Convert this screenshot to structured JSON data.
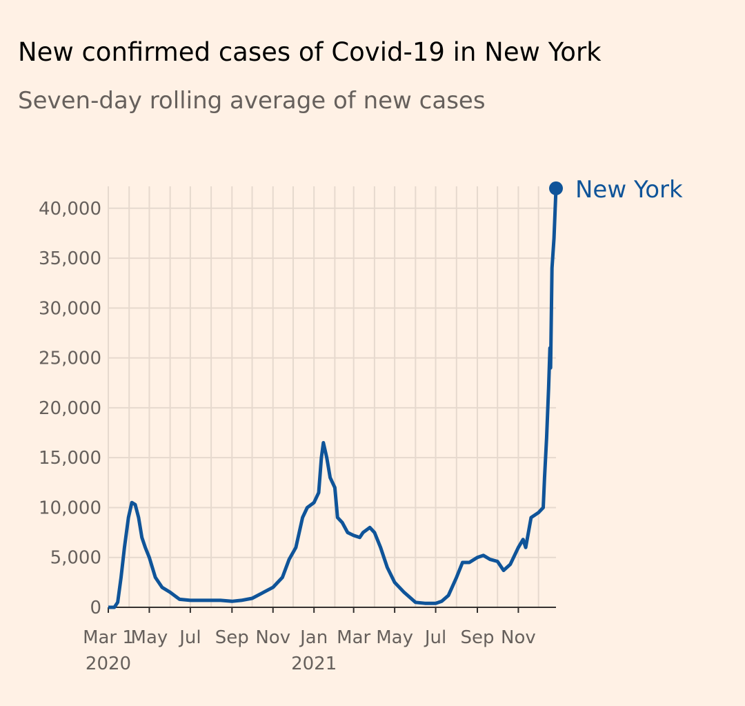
{
  "chart_data": {
    "type": "line",
    "title": "New confirmed cases of Covid-19 in New York",
    "subtitle": "Seven-day rolling average of new cases",
    "x": [
      "2020-03-01",
      "2020-03-10",
      "2020-03-15",
      "2020-03-20",
      "2020-03-25",
      "2020-03-31",
      "2020-04-05",
      "2020-04-10",
      "2020-04-15",
      "2020-04-20",
      "2020-04-25",
      "2020-05-01",
      "2020-05-10",
      "2020-05-20",
      "2020-06-01",
      "2020-06-15",
      "2020-07-01",
      "2020-07-15",
      "2020-08-01",
      "2020-08-15",
      "2020-09-01",
      "2020-09-15",
      "2020-10-01",
      "2020-10-15",
      "2020-11-01",
      "2020-11-15",
      "2020-11-25",
      "2020-12-05",
      "2020-12-15",
      "2020-12-22",
      "2021-01-01",
      "2021-01-08",
      "2021-01-12",
      "2021-01-15",
      "2021-01-20",
      "2021-01-25",
      "2021-02-01",
      "2021-02-05",
      "2021-02-12",
      "2021-02-20",
      "2021-03-01",
      "2021-03-10",
      "2021-03-15",
      "2021-03-25",
      "2021-04-01",
      "2021-04-10",
      "2021-04-20",
      "2021-05-01",
      "2021-05-15",
      "2021-06-01",
      "2021-06-15",
      "2021-07-01",
      "2021-07-10",
      "2021-07-20",
      "2021-08-01",
      "2021-08-10",
      "2021-08-20",
      "2021-09-01",
      "2021-09-10",
      "2021-09-20",
      "2021-10-01",
      "2021-10-10",
      "2021-10-20",
      "2021-11-01",
      "2021-11-08",
      "2021-11-12",
      "2021-11-20",
      "2021-12-01",
      "2021-12-08",
      "2021-12-10",
      "2021-12-13",
      "2021-12-16",
      "2021-12-18",
      "2021-12-19",
      "2021-12-21",
      "2021-12-24",
      "2021-12-27"
    ],
    "series": [
      {
        "name": "New York",
        "color": "#0f5499",
        "values": [
          0,
          0,
          500,
          3000,
          6000,
          9000,
          10500,
          10300,
          9000,
          7000,
          6000,
          5000,
          3000,
          2000,
          1500,
          800,
          700,
          700,
          700,
          700,
          600,
          700,
          900,
          1400,
          2000,
          3000,
          4800,
          6000,
          9000,
          10000,
          10500,
          11500,
          15000,
          16500,
          15000,
          13000,
          12000,
          9000,
          8500,
          7500,
          7200,
          7000,
          7500,
          8000,
          7500,
          6000,
          4000,
          2500,
          1500,
          500,
          400,
          400,
          600,
          1200,
          3000,
          4500,
          4500,
          5000,
          5200,
          4800,
          4600,
          3700,
          4300,
          6000,
          6800,
          6000,
          9000,
          9500,
          10000,
          13000,
          17000,
          22000,
          26000,
          24000,
          34000,
          37000,
          42000
        ]
      }
    ],
    "xlim": [
      "2020-03-01",
      "2021-12-27"
    ],
    "xticks": [
      {
        "value": "2020-03-01",
        "label": "Mar 1",
        "year": "2020"
      },
      {
        "value": "2020-05-01",
        "label": "May"
      },
      {
        "value": "2020-07-01",
        "label": "Jul"
      },
      {
        "value": "2020-09-01",
        "label": "Sep"
      },
      {
        "value": "2020-11-01",
        "label": "Nov"
      },
      {
        "value": "2021-01-01",
        "label": "Jan",
        "year": "2021"
      },
      {
        "value": "2021-03-01",
        "label": "Mar"
      },
      {
        "value": "2021-05-01",
        "label": "May"
      },
      {
        "value": "2021-07-01",
        "label": "Jul"
      },
      {
        "value": "2021-09-01",
        "label": "Sep"
      },
      {
        "value": "2021-11-01",
        "label": "Nov"
      }
    ],
    "xgrid": [
      "2020-03-01",
      "2020-04-01",
      "2020-05-01",
      "2020-06-01",
      "2020-07-01",
      "2020-08-01",
      "2020-09-01",
      "2020-10-01",
      "2020-11-01",
      "2020-12-01",
      "2021-01-01",
      "2021-02-01",
      "2021-03-01",
      "2021-04-01",
      "2021-05-01",
      "2021-06-01",
      "2021-07-01",
      "2021-08-01",
      "2021-09-01",
      "2021-10-01",
      "2021-11-01",
      "2021-12-01"
    ],
    "ylim": [
      0,
      42200
    ],
    "yticks": [
      0,
      {
        "value": 5000,
        "label": "5,000"
      },
      {
        "value": 10000,
        "label": "10,000"
      },
      {
        "value": 15000,
        "label": "15,000"
      },
      {
        "value": 20000,
        "label": "20,000"
      },
      {
        "value": 25000,
        "label": "25,000"
      },
      {
        "value": 30000,
        "label": "30,000"
      },
      {
        "value": 35000,
        "label": "35,000"
      },
      {
        "value": 40000,
        "label": "40,000"
      }
    ],
    "grid": true
  }
}
